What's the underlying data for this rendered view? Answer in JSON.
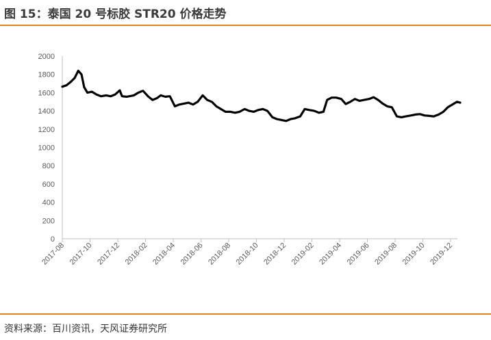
{
  "header": {
    "title": "图 15：泰国 20 号标胶 STR20 价格走势"
  },
  "footer": {
    "source": "资料来源：百川资讯，天风证券研究所"
  },
  "colors": {
    "accent_rule": "#e6821e",
    "series_line": "#000000",
    "axis": "#bfbfbf"
  },
  "chart_data": {
    "type": "line",
    "title": "",
    "xlabel": "",
    "ylabel": "",
    "ylim": [
      0,
      2000
    ],
    "yticks": [
      0,
      200,
      400,
      600,
      800,
      1000,
      1200,
      1400,
      1600,
      1800,
      2000
    ],
    "xticks": [
      "2017-08",
      "2017-10",
      "2017-12",
      "2018-02",
      "2018-04",
      "2018-06",
      "2018-08",
      "2018-10",
      "2018-12",
      "2019-02",
      "2019-04",
      "2019-06",
      "2019-08",
      "2019-10",
      "2019-12"
    ],
    "grid": false,
    "legend": "none",
    "series": [
      {
        "name": "",
        "x": [
          "2017-08-01",
          "2017-08-10",
          "2017-08-20",
          "2017-08-28",
          "2017-09-05",
          "2017-09-12",
          "2017-09-18",
          "2017-09-25",
          "2017-10-05",
          "2017-10-15",
          "2017-10-25",
          "2017-11-05",
          "2017-11-15",
          "2017-11-25",
          "2017-12-05",
          "2017-12-10",
          "2017-12-20",
          "2018-01-05",
          "2018-01-15",
          "2018-01-25",
          "2018-02-05",
          "2018-02-15",
          "2018-02-25",
          "2018-03-05",
          "2018-03-15",
          "2018-03-25",
          "2018-04-05",
          "2018-04-15",
          "2018-04-25",
          "2018-05-05",
          "2018-05-15",
          "2018-05-25",
          "2018-06-05",
          "2018-06-15",
          "2018-06-25",
          "2018-07-05",
          "2018-07-15",
          "2018-07-25",
          "2018-08-05",
          "2018-08-15",
          "2018-08-25",
          "2018-09-05",
          "2018-09-15",
          "2018-09-25",
          "2018-10-05",
          "2018-10-15",
          "2018-10-25",
          "2018-11-05",
          "2018-11-15",
          "2018-11-25",
          "2018-12-05",
          "2018-12-15",
          "2018-12-25",
          "2019-01-05",
          "2019-01-15",
          "2019-01-25",
          "2019-02-05",
          "2019-02-15",
          "2019-02-25",
          "2019-03-05",
          "2019-03-15",
          "2019-03-25",
          "2019-04-05",
          "2019-04-15",
          "2019-04-25",
          "2019-05-05",
          "2019-05-15",
          "2019-05-25",
          "2019-06-05",
          "2019-06-15",
          "2019-06-25",
          "2019-07-05",
          "2019-07-15",
          "2019-07-25",
          "2019-08-05",
          "2019-08-15",
          "2019-08-25",
          "2019-09-05",
          "2019-09-15",
          "2019-09-25",
          "2019-10-05",
          "2019-10-15",
          "2019-10-25",
          "2019-11-05",
          "2019-11-15",
          "2019-11-25",
          "2019-12-05",
          "2019-12-15",
          "2019-12-22"
        ],
        "y": [
          1665,
          1680,
          1720,
          1760,
          1840,
          1800,
          1660,
          1600,
          1610,
          1580,
          1560,
          1570,
          1560,
          1580,
          1625,
          1560,
          1555,
          1570,
          1600,
          1620,
          1560,
          1520,
          1540,
          1570,
          1555,
          1560,
          1450,
          1470,
          1480,
          1490,
          1470,
          1500,
          1570,
          1520,
          1500,
          1450,
          1420,
          1390,
          1390,
          1380,
          1390,
          1420,
          1400,
          1390,
          1410,
          1420,
          1400,
          1330,
          1310,
          1300,
          1290,
          1310,
          1320,
          1340,
          1420,
          1410,
          1400,
          1380,
          1390,
          1520,
          1545,
          1545,
          1530,
          1475,
          1500,
          1530,
          1510,
          1520,
          1530,
          1550,
          1520,
          1480,
          1450,
          1440,
          1340,
          1330,
          1340,
          1350,
          1360,
          1365,
          1350,
          1345,
          1340,
          1360,
          1390,
          1440,
          1470,
          1500,
          1490
        ]
      }
    ]
  }
}
